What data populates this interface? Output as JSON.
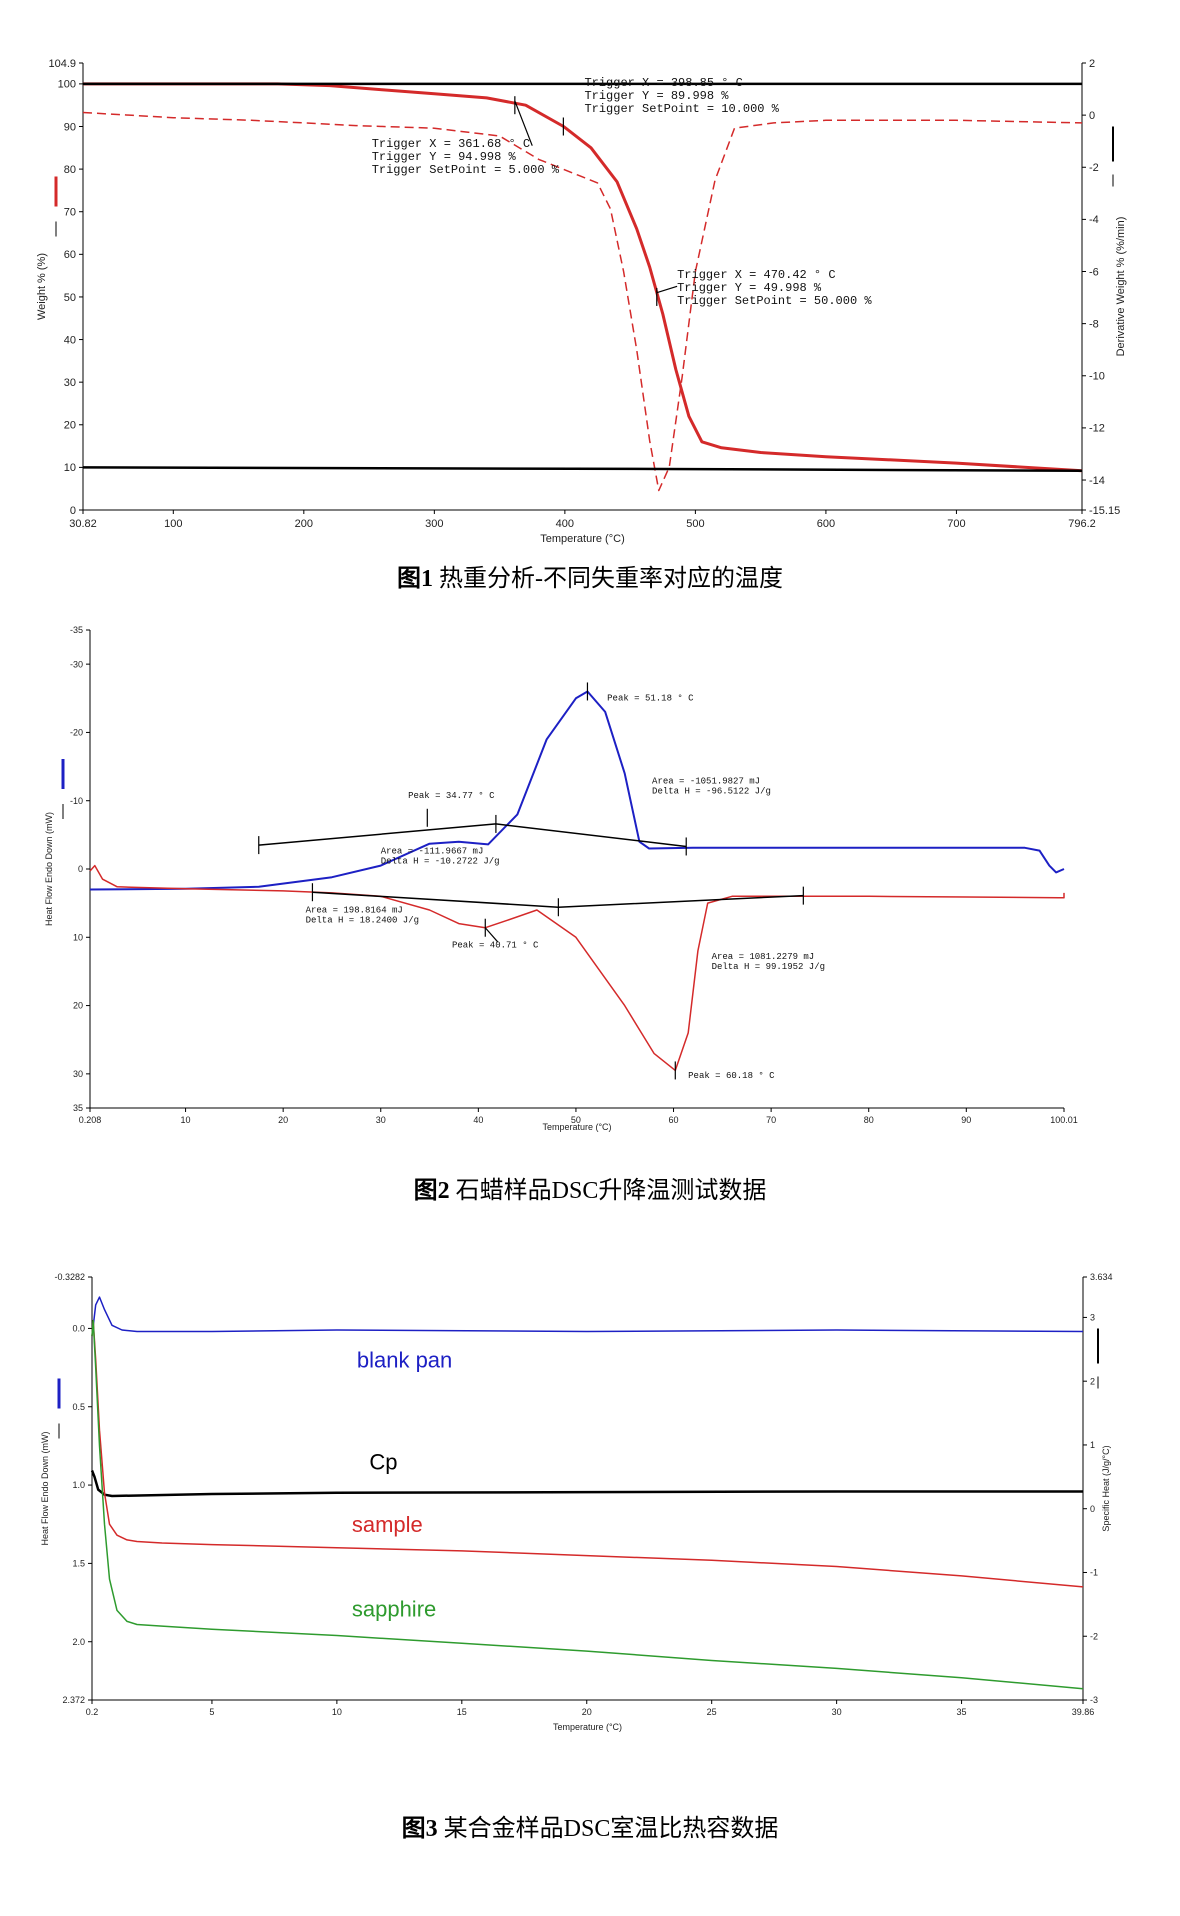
{
  "colors": {
    "red": "#d42a2a",
    "blue": "#1d20c4",
    "green": "#2e9b2e",
    "black": "#000000"
  },
  "chart_data": [
    {
      "type": "line",
      "caption_num": "图1",
      "caption_text": "热重分析-不同失重率对应的温度",
      "xlabel": "Temperature (°C)",
      "ylabel_left": "Weight % (%)",
      "ylabel_right": "Derivative Weight % (%/min)",
      "xlim": [
        30.82,
        796.2
      ],
      "ylim_left": [
        0,
        104.9
      ],
      "ylim_right": [
        -15.15,
        2
      ],
      "xticks": [
        {
          "v": 30.82,
          "label": "30.82"
        },
        {
          "v": 100,
          "label": "100"
        },
        {
          "v": 200,
          "label": "200"
        },
        {
          "v": 300,
          "label": "300"
        },
        {
          "v": 400,
          "label": "400"
        },
        {
          "v": 500,
          "label": "500"
        },
        {
          "v": 600,
          "label": "600"
        },
        {
          "v": 700,
          "label": "700"
        },
        {
          "v": 796.2,
          "label": "796.2"
        }
      ],
      "yticks_left": [
        {
          "v": 0,
          "label": "0"
        },
        {
          "v": 10,
          "label": "10"
        },
        {
          "v": 20,
          "label": "20"
        },
        {
          "v": 30,
          "label": "30"
        },
        {
          "v": 40,
          "label": "40"
        },
        {
          "v": 50,
          "label": "50"
        },
        {
          "v": 60,
          "label": "60"
        },
        {
          "v": 70,
          "label": "70"
        },
        {
          "v": 80,
          "label": "80"
        },
        {
          "v": 90,
          "label": "90"
        },
        {
          "v": 100,
          "label": "100"
        },
        {
          "v": 104.9,
          "label": "104.9"
        }
      ],
      "yticks_right": [
        {
          "v": 2,
          "label": "2"
        },
        {
          "v": 0,
          "label": "0"
        },
        {
          "v": -2,
          "label": "-2"
        },
        {
          "v": -4,
          "label": "-4"
        },
        {
          "v": -6,
          "label": "-6"
        },
        {
          "v": -8,
          "label": "-8"
        },
        {
          "v": -10,
          "label": "-10"
        },
        {
          "v": -12,
          "label": "-12"
        },
        {
          "v": -14,
          "label": "-14"
        },
        {
          "v": -15.15,
          "label": "-15.15"
        }
      ],
      "series": [
        {
          "axis": "left",
          "color": "#d42a2a",
          "style": "solid",
          "width": 3,
          "x": [
            30.82,
            180,
            220,
            260,
            300,
            340,
            370,
            399,
            420,
            440,
            455,
            465,
            475,
            485,
            495,
            505,
            520,
            550,
            600,
            700,
            796.2
          ],
          "y": [
            100,
            100,
            99.6,
            98.6,
            97.7,
            96.7,
            95,
            90,
            85,
            77,
            66,
            57,
            46,
            33,
            22,
            16,
            14.6,
            13.5,
            12.5,
            11,
            9.2
          ]
        },
        {
          "axis": "right",
          "color": "#d42a2a",
          "style": "dashed",
          "width": 1.5,
          "x": [
            30.82,
            100,
            160,
            200,
            240,
            300,
            350,
            380,
            410,
            425,
            435,
            445,
            455,
            465,
            472,
            480,
            490,
            500,
            515,
            530,
            560,
            600,
            700,
            796.2
          ],
          "y": [
            0.1,
            -0.1,
            -0.2,
            -0.3,
            -0.4,
            -0.5,
            -0.8,
            -1.7,
            -2.3,
            -2.6,
            -3.6,
            -6,
            -9,
            -12.5,
            -14.4,
            -13.5,
            -10,
            -6,
            -2.5,
            -0.5,
            -0.3,
            -0.2,
            -0.2,
            -0.3
          ]
        },
        {
          "axis": "left",
          "color": "#000000",
          "style": "solid",
          "width": 2.5,
          "x": [
            30.82,
            796.2
          ],
          "y": [
            100,
            100
          ]
        },
        {
          "axis": "left",
          "color": "#000000",
          "style": "solid",
          "width": 2.5,
          "x": [
            30.82,
            500,
            796.2
          ],
          "y": [
            10,
            9.6,
            9.2
          ]
        }
      ],
      "markers": [
        {
          "x": 361.68,
          "y": 94.998
        },
        {
          "x": 398.85,
          "y": 89.998
        },
        {
          "x": 470.42,
          "y": 49.998
        }
      ],
      "annotations": [
        {
          "x": 398.85,
          "y": 89.998,
          "ax": 415,
          "ay": 99.5,
          "lines": [
            "Trigger X = 398.85 ° C",
            "Trigger Y = 89.998 %",
            "Trigger SetPoint = 10.000 %"
          ]
        },
        {
          "x": 361.68,
          "y": 94.998,
          "ax": 252,
          "ay": 85.2,
          "lines": [
            "Trigger X = 361.68 ° C",
            "Trigger Y = 94.998 %",
            "Trigger SetPoint = 5.000 %"
          ]
        },
        {
          "x": 470.42,
          "y": 49.998,
          "ax": 486,
          "ay": 54.5,
          "lines": [
            "Trigger X = 470.42 ° C",
            "Trigger Y = 49.998 %",
            "Trigger SetPoint = 50.000 %"
          ]
        }
      ],
      "leader_lines": [
        {
          "from": [
            361.68,
            96
          ],
          "to": [
            375,
            85.5
          ]
        },
        {
          "from": [
            470.42,
            51
          ],
          "to": [
            486,
            52.5
          ]
        }
      ]
    },
    {
      "type": "line",
      "caption_num": "图2",
      "caption_text": "石蜡样品DSC升降温测试数据",
      "xlabel": "Temperature (°C)",
      "ylabel_left": "Heat Flow Endo Down (mW)",
      "xlim": [
        0.208,
        100.01
      ],
      "ylim_left": [
        35,
        -35
      ],
      "xticks": [
        {
          "v": 0.208,
          "label": "0.208"
        },
        {
          "v": 10,
          "label": "10"
        },
        {
          "v": 20,
          "label": "20"
        },
        {
          "v": 30,
          "label": "30"
        },
        {
          "v": 40,
          "label": "40"
        },
        {
          "v": 50,
          "label": "50"
        },
        {
          "v": 60,
          "label": "60"
        },
        {
          "v": 70,
          "label": "70"
        },
        {
          "v": 80,
          "label": "80"
        },
        {
          "v": 90,
          "label": "90"
        },
        {
          "v": 100.01,
          "label": "100.01"
        }
      ],
      "yticks_left": [
        {
          "v": -35,
          "label": "-35"
        },
        {
          "v": -30,
          "label": "-30"
        },
        {
          "v": -20,
          "label": "-20"
        },
        {
          "v": -10,
          "label": "-10"
        },
        {
          "v": 0,
          "label": "0"
        },
        {
          "v": 10,
          "label": "10"
        },
        {
          "v": 20,
          "label": "20"
        },
        {
          "v": 30,
          "label": "30"
        },
        {
          "v": 35,
          "label": "35"
        }
      ],
      "series": [
        {
          "axis": "left",
          "color": "#1d20c4",
          "style": "solid",
          "width": 2,
          "x": [
            0.208,
            10,
            17.5,
            25,
            30,
            35,
            38,
            41,
            44,
            47,
            50,
            51.18,
            53,
            55,
            56.5,
            57.5,
            62,
            70,
            80,
            90,
            96,
            97.5,
            98.5,
            99.2,
            100.01
          ],
          "y": [
            3,
            2.9,
            2.6,
            1.2,
            -0.5,
            -3.7,
            -4,
            -3.6,
            -8,
            -19,
            -25,
            -26,
            -23,
            -14,
            -4,
            -3,
            -3.1,
            -3.1,
            -3.1,
            -3.1,
            -3.1,
            -2.7,
            -0.5,
            0.5,
            0
          ]
        },
        {
          "axis": "left",
          "color": "#d42a2a",
          "style": "solid",
          "width": 1.5,
          "x": [
            0.208,
            0.7,
            1.5,
            3,
            10,
            20,
            25,
            30,
            35,
            38,
            40.71,
            43,
            46,
            50,
            55,
            58,
            60.18,
            61.5,
            62.5,
            63.5,
            66,
            73,
            80,
            90,
            99.5,
            100.01,
            100.01
          ],
          "y": [
            0.3,
            -0.5,
            1.5,
            2.6,
            2.9,
            3.2,
            3.5,
            4,
            6,
            8,
            8.6,
            7.5,
            6,
            10,
            20,
            27,
            29.5,
            24,
            12,
            5,
            4,
            4,
            4,
            4.1,
            4.2,
            4.2,
            3.5
          ]
        },
        {
          "axis": "left",
          "color": "#000000",
          "style": "solid",
          "width": 1.5,
          "x": [
            17.5,
            41.8,
            61.3
          ],
          "y": [
            -3.5,
            -6.6,
            -3.3
          ]
        },
        {
          "axis": "left",
          "color": "#000000",
          "style": "solid",
          "width": 1.5,
          "x": [
            23,
            48.2,
            73.3
          ],
          "y": [
            3.4,
            5.6,
            3.9
          ]
        }
      ],
      "markers": [
        {
          "x": 17.5,
          "y": -3.5
        },
        {
          "x": 34.77,
          "y": -7.5
        },
        {
          "x": 41.8,
          "y": -6.6
        },
        {
          "x": 51.18,
          "y": -26
        },
        {
          "x": 61.3,
          "y": -3.3
        },
        {
          "x": 23,
          "y": 3.4
        },
        {
          "x": 40.71,
          "y": 8.6
        },
        {
          "x": 48.2,
          "y": 5.6
        },
        {
          "x": 60.18,
          "y": 29.5
        },
        {
          "x": 73.3,
          "y": 3.9
        }
      ],
      "annotations": [
        {
          "ax": 53.2,
          "ay": -24.7,
          "lines": [
            "Peak = 51.18 ° C"
          ]
        },
        {
          "ax": 32.8,
          "ay": -10.4,
          "lines": [
            "Peak = 34.77 ° C"
          ]
        },
        {
          "ax": 57.8,
          "ay": -12.5,
          "lines": [
            "Area = -1051.9827 mJ",
            "Delta H = -96.5122 J/g"
          ]
        },
        {
          "ax": 30,
          "ay": -2.3,
          "lines": [
            "Area = -111.9667 mJ",
            "Delta H = -10.2722 J/g"
          ]
        },
        {
          "ax": 22.3,
          "ay": 6.4,
          "lines": [
            "Area = 198.8164 mJ",
            "Delta H = 18.2400 J/g"
          ]
        },
        {
          "ax": 37.3,
          "ay": 11.5,
          "lines": [
            "Peak = 40.71 ° C"
          ]
        },
        {
          "ax": 63.9,
          "ay": 13.2,
          "lines": [
            "Area = 1081.2279 mJ",
            "Delta H = 99.1952 J/g"
          ]
        },
        {
          "ax": 61.5,
          "ay": 30.6,
          "lines": [
            "Peak = 60.18 ° C"
          ]
        }
      ],
      "leader_lines": [
        {
          "from": [
            40.71,
            8.6
          ],
          "to": [
            42,
            10.7
          ]
        }
      ]
    },
    {
      "type": "line",
      "caption_num": "图3",
      "caption_text": "某合金样品DSC室温比热容数据",
      "xlabel": "Temperature (°C)",
      "ylabel_left": "Heat Flow Endo Down (mW)",
      "ylabel_right": "Specific Heat (J/g/°C)",
      "xlim": [
        0.2,
        39.86
      ],
      "ylim_left": [
        2.372,
        -0.3282
      ],
      "ylim_right": [
        -3,
        3.634
      ],
      "xticks": [
        {
          "v": 0.2,
          "label": "0.2"
        },
        {
          "v": 5,
          "label": "5"
        },
        {
          "v": 10,
          "label": "10"
        },
        {
          "v": 15,
          "label": "15"
        },
        {
          "v": 20,
          "label": "20"
        },
        {
          "v": 25,
          "label": "25"
        },
        {
          "v": 30,
          "label": "30"
        },
        {
          "v": 35,
          "label": "35"
        },
        {
          "v": 39.86,
          "label": "39.86"
        }
      ],
      "yticks_left": [
        {
          "v": -0.3282,
          "label": "-0.3282"
        },
        {
          "v": 0,
          "label": "0.0"
        },
        {
          "v": 0.5,
          "label": "0.5"
        },
        {
          "v": 1,
          "label": "1.0"
        },
        {
          "v": 1.5,
          "label": "1.5"
        },
        {
          "v": 2,
          "label": "2.0"
        },
        {
          "v": 2.372,
          "label": "2.372"
        }
      ],
      "yticks_right": [
        {
          "v": 3.634,
          "label": "3.634"
        },
        {
          "v": 3,
          "label": "3"
        },
        {
          "v": 2,
          "label": "2"
        },
        {
          "v": 1,
          "label": "1"
        },
        {
          "v": 0,
          "label": "0"
        },
        {
          "v": -1,
          "label": "-1"
        },
        {
          "v": -2,
          "label": "-2"
        },
        {
          "v": -3,
          "label": "-3"
        }
      ],
      "series": [
        {
          "name": "blank pan",
          "axis": "left",
          "color": "#1d20c4",
          "style": "solid",
          "width": 1.5,
          "x": [
            0.2,
            0.35,
            0.5,
            0.7,
            1,
            1.4,
            2,
            5,
            10,
            20,
            30,
            39.86
          ],
          "y": [
            0.05,
            -0.15,
            -0.2,
            -0.12,
            -0.02,
            0.01,
            0.02,
            0.02,
            0.01,
            0.02,
            0.01,
            0.02
          ]
        },
        {
          "name": "Cp",
          "axis": "right",
          "color": "#000000",
          "style": "solid",
          "width": 2.5,
          "x": [
            0.2,
            0.3,
            0.45,
            0.7,
            1,
            5,
            10,
            20,
            30,
            39.86
          ],
          "y": [
            0.6,
            0.5,
            0.3,
            0.22,
            0.2,
            0.23,
            0.25,
            0.26,
            0.27,
            0.27
          ]
        },
        {
          "name": "sample",
          "axis": "left",
          "color": "#d42a2a",
          "style": "solid",
          "width": 1.5,
          "x": [
            0.2,
            0.25,
            0.35,
            0.5,
            0.7,
            0.9,
            1.2,
            1.6,
            2,
            3,
            5,
            10,
            15,
            20,
            25,
            30,
            35,
            39.86
          ],
          "y": [
            0.05,
            -0.05,
            0.2,
            0.65,
            1.05,
            1.25,
            1.32,
            1.35,
            1.36,
            1.37,
            1.38,
            1.4,
            1.42,
            1.45,
            1.48,
            1.52,
            1.58,
            1.65
          ]
        },
        {
          "name": "sapphire",
          "axis": "left",
          "color": "#2e9b2e",
          "style": "solid",
          "width": 1.5,
          "x": [
            0.2,
            0.25,
            0.35,
            0.5,
            0.7,
            0.9,
            1.2,
            1.6,
            2,
            3,
            5,
            10,
            15,
            20,
            25,
            30,
            35,
            39.86
          ],
          "y": [
            0.05,
            -0.05,
            0.25,
            0.75,
            1.25,
            1.6,
            1.8,
            1.87,
            1.89,
            1.9,
            1.92,
            1.96,
            2.01,
            2.06,
            2.12,
            2.17,
            2.23,
            2.3
          ]
        }
      ],
      "markers": [],
      "leader_lines": [],
      "annotations": [],
      "series_labels": [
        {
          "text": "blank pan",
          "color": "#1d20c4",
          "ax": 10.8,
          "ay": 0.25
        },
        {
          "text": "Cp",
          "color": "#000000",
          "ax": 11.3,
          "ay": 0.9
        },
        {
          "text": "sample",
          "color": "#d42a2a",
          "ax": 10.6,
          "ay": 1.3
        },
        {
          "text": "sapphire",
          "color": "#2e9b2e",
          "ax": 10.6,
          "ay": 1.84
        }
      ]
    }
  ]
}
